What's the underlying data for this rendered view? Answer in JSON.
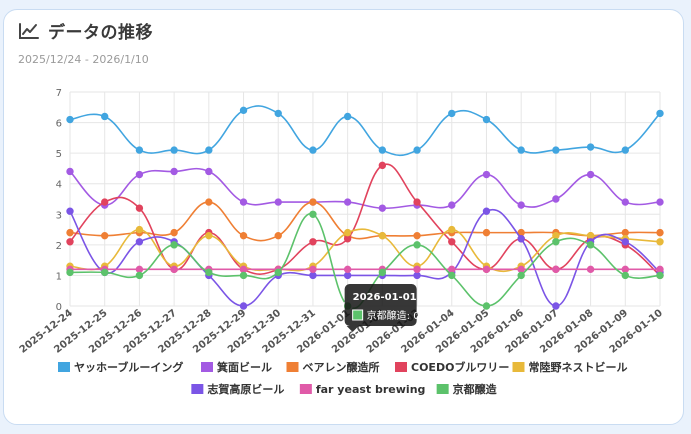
{
  "header": {
    "title": "データの推移",
    "icon": "line-chart-icon",
    "date_range": "2025/12/24 - 2026/1/10"
  },
  "tooltip": {
    "title": "2026-01-01",
    "label": "京都醸造: 0",
    "color": "#5cc26b"
  },
  "chart_data": {
    "type": "line",
    "title": "データの推移",
    "xlabel": "",
    "ylabel": "",
    "ylim": [
      0,
      7
    ],
    "yticks": [
      0,
      1,
      2,
      3,
      4,
      5,
      6,
      7
    ],
    "grid": true,
    "legend_position": "bottom",
    "categories": [
      "2025-12-24",
      "2025-12-25",
      "2025-12-26",
      "2025-12-27",
      "2025-12-28",
      "2025-12-29",
      "2025-12-30",
      "2025-12-31",
      "2026-01-01",
      "2026-01-02",
      "2026-01-03",
      "2026-01-04",
      "2026-01-05",
      "2026-01-06",
      "2026-01-07",
      "2026-01-08",
      "2026-01-09",
      "2026-01-10"
    ],
    "series": [
      {
        "name": "ヤッホーブルーイング",
        "color": "#41a5e0",
        "values": [
          6.1,
          6.2,
          5.1,
          5.1,
          5.1,
          6.4,
          6.3,
          5.1,
          6.2,
          5.1,
          5.1,
          6.3,
          6.1,
          5.1,
          5.1,
          5.2,
          5.1,
          6.3
        ]
      },
      {
        "name": "箕面ビール",
        "color": "#a35ae3",
        "values": [
          4.4,
          3.3,
          4.3,
          4.4,
          4.4,
          3.4,
          3.4,
          3.4,
          3.4,
          3.2,
          3.3,
          3.3,
          4.3,
          3.3,
          3.5,
          4.3,
          3.4,
          3.4
        ]
      },
      {
        "name": "ベアレン醸造所",
        "color": "#ef7f34",
        "values": [
          2.4,
          2.3,
          2.4,
          2.4,
          3.4,
          2.3,
          2.3,
          3.4,
          2.3,
          2.3,
          2.3,
          2.4,
          2.4,
          2.4,
          2.4,
          2.3,
          2.4,
          2.4
        ]
      },
      {
        "name": "COEDOブルワリー",
        "color": "#e1435d",
        "values": [
          2.1,
          3.4,
          3.2,
          1.2,
          2.4,
          1.2,
          1.2,
          2.1,
          2.2,
          4.6,
          3.4,
          2.1,
          1.2,
          2.2,
          1.2,
          2.2,
          2.0,
          1.0
        ]
      },
      {
        "name": "常陸野ネストビール",
        "color": "#e8b93a",
        "values": [
          1.3,
          1.3,
          2.5,
          1.3,
          2.3,
          1.3,
          1.2,
          1.3,
          2.4,
          2.3,
          1.3,
          2.5,
          1.3,
          1.3,
          2.3,
          2.3,
          2.2,
          2.1
        ]
      },
      {
        "name": "志賀高原ビール",
        "color": "#7b55e6",
        "values": [
          3.1,
          1.1,
          2.1,
          2.1,
          1.0,
          0.0,
          1.0,
          1.0,
          1.0,
          1.0,
          1.0,
          1.1,
          3.1,
          2.2,
          0.0,
          2.1,
          2.1,
          1.1
        ]
      },
      {
        "name": "far yeast brewing",
        "color": "#e05aa8",
        "values": [
          1.2,
          1.2,
          1.2,
          1.2,
          1.2,
          1.2,
          1.2,
          1.2,
          1.2,
          1.2,
          1.2,
          1.2,
          1.2,
          1.2,
          1.2,
          1.2,
          1.2,
          1.2
        ]
      },
      {
        "name": "京都醸造",
        "color": "#5cc26b",
        "values": [
          1.1,
          1.1,
          1.0,
          2.0,
          1.1,
          1.0,
          1.1,
          3.0,
          0.0,
          1.1,
          2.0,
          1.0,
          0.0,
          1.0,
          2.1,
          2.0,
          1.0,
          1.0
        ]
      }
    ]
  }
}
